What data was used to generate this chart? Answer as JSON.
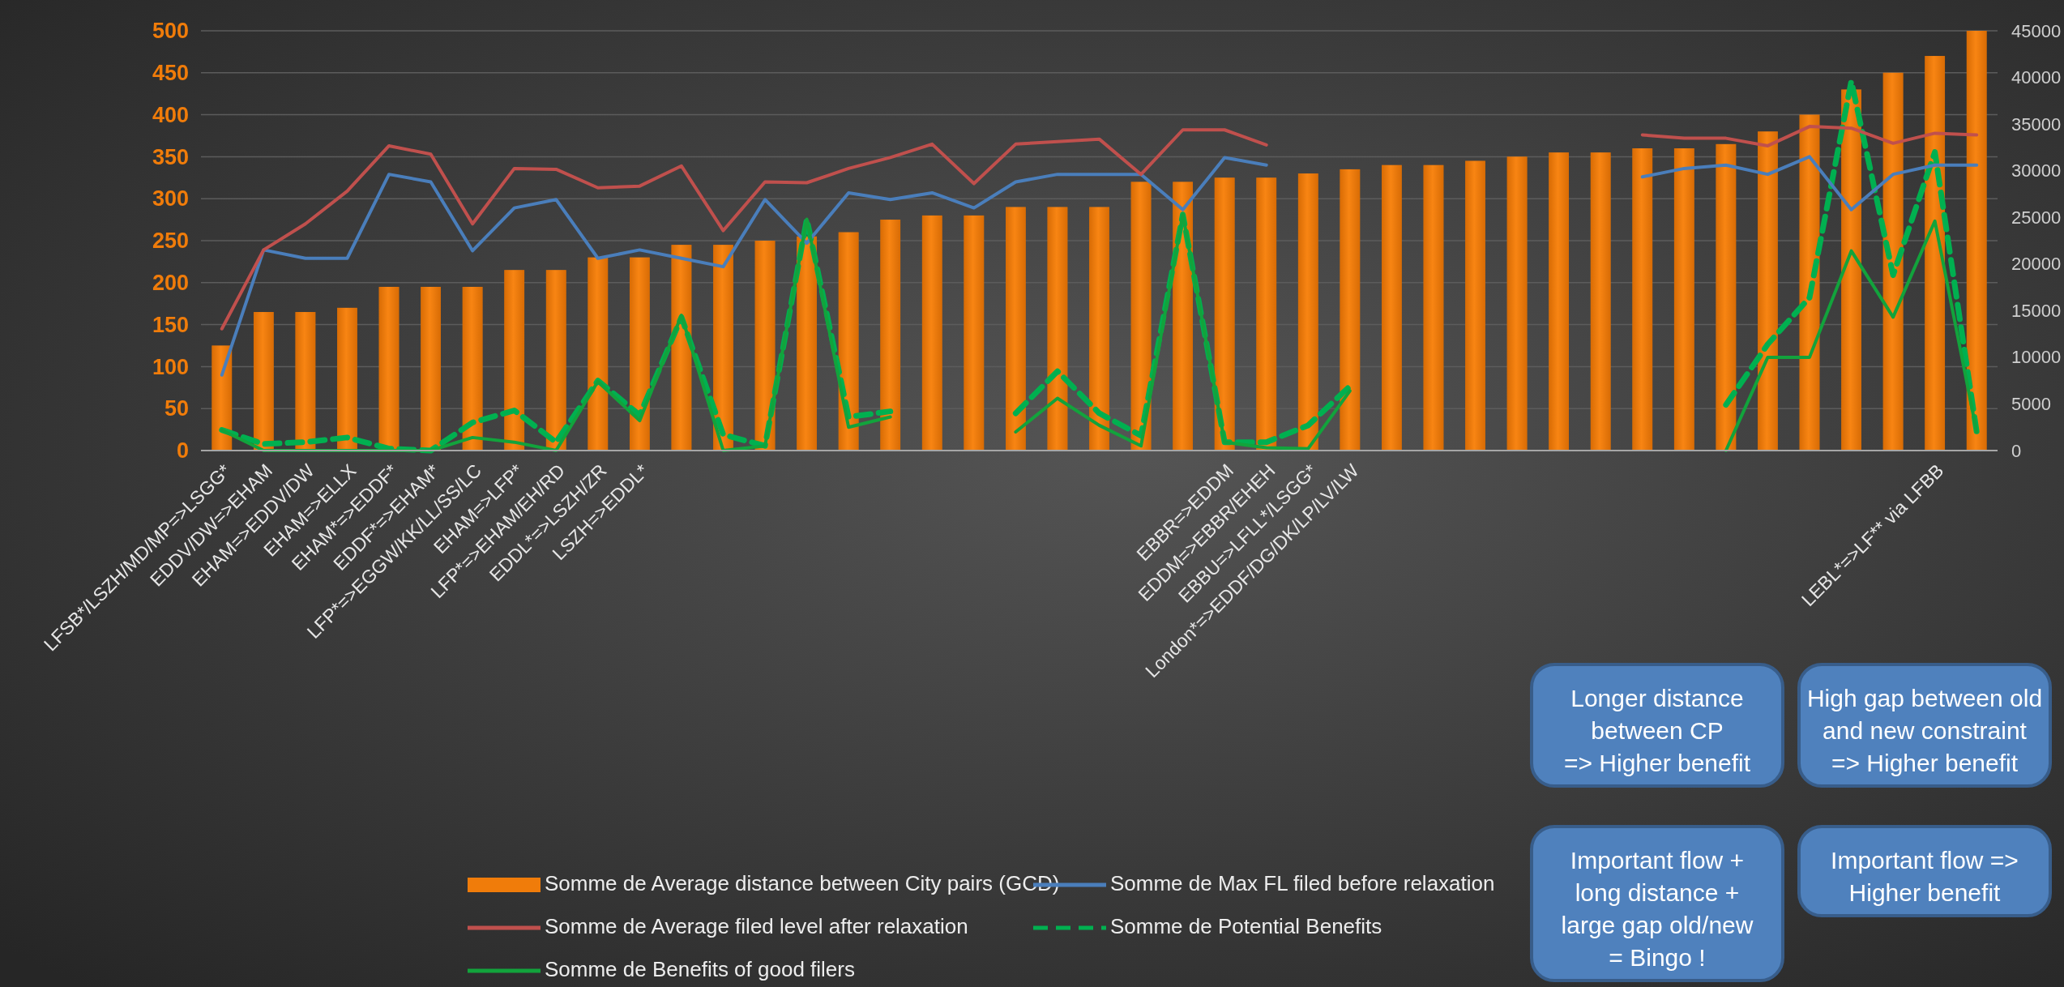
{
  "chart_data": {
    "type": "bar",
    "categories": [
      "LFSB*/LSZH/MD/MP=>LSGG*",
      "EDDV/DW=>EHAM",
      "EHAM=>EDDV/DW",
      "EHAM=>ELLX",
      "EHAM*=>EDDF*",
      "EDDF*=>EHAM*",
      "LFP*=>EGGW/KK/LL/SS/LC",
      "EHAM=>LFP*",
      "LFP*=>EHAM/EH/RD",
      "EDDL*=>LSZH/ZR",
      "LSZH=>EDDL*",
      null,
      null,
      null,
      null,
      null,
      null,
      null,
      null,
      null,
      null,
      null,
      null,
      null,
      "EBBR=>EDDM",
      "EDDM=>EBBR/EHEH",
      "EBBU=>LFLL*/LSGG*",
      "London*=>EDDF/DG/DK/LP/LV/LW",
      null,
      null,
      null,
      null,
      null,
      null,
      null,
      null,
      null,
      null,
      null,
      null,
      null,
      "LEBL*=>LF** via LFBB",
      null
    ],
    "series": [
      {
        "name": "Somme de Average distance between City pairs (GCD)",
        "color": "#f07c0a",
        "values": [
          125,
          165,
          165,
          170,
          195,
          195,
          195,
          215,
          215,
          230,
          230,
          245,
          245,
          250,
          255,
          260,
          275,
          280,
          280,
          290,
          290,
          290,
          320,
          320,
          325,
          325,
          330,
          335,
          340,
          340,
          345,
          350,
          355,
          355,
          360,
          360,
          365,
          380,
          400,
          430,
          450,
          470,
          500
        ]
      },
      {
        "name": "Somme de Max FL filed before relaxation",
        "type": "line",
        "color": "#4a7ebb",
        "values": [
          90,
          239,
          229,
          229,
          329,
          320,
          238,
          289,
          299,
          229,
          239,
          229,
          219,
          299,
          247,
          307,
          299,
          307,
          289,
          320,
          329,
          329,
          329,
          287,
          349,
          340,
          null,
          null,
          null,
          null,
          null,
          null,
          null,
          null,
          326,
          336,
          340,
          329,
          350,
          287,
          329,
          340,
          340
        ]
      },
      {
        "name": "Somme de Average filed level after relaxation",
        "type": "line",
        "color": "#c0504d",
        "values": [
          145,
          239,
          270,
          309,
          363,
          353,
          270,
          336,
          335,
          313,
          315,
          339,
          262,
          320,
          319,
          336,
          349,
          365,
          318,
          365,
          368,
          371,
          329,
          382,
          382,
          364,
          null,
          null,
          null,
          null,
          null,
          null,
          null,
          null,
          376,
          372,
          372,
          363,
          386,
          384,
          366,
          378,
          376
        ]
      },
      {
        "name": "Somme de Potential Benefits",
        "type": "line",
        "axis": "y2",
        "line_style": "dashed",
        "color": "#00b050",
        "values": [
          2200,
          700,
          900,
          1400,
          200,
          0,
          3000,
          4300,
          900,
          7500,
          3800,
          14300,
          1700,
          500,
          24800,
          3600,
          4200,
          null,
          null,
          4000,
          8500,
          4000,
          1600,
          25300,
          900,
          900,
          2700,
          6900,
          null,
          null,
          null,
          null,
          null,
          null,
          null,
          null,
          4900,
          11400,
          16400,
          39600,
          18800,
          32000,
          2000
        ]
      },
      {
        "name": "Somme de Benefits of good filers",
        "type": "line",
        "axis": "y2",
        "line_style": "solid",
        "color": "#12a33c",
        "values": [
          2200,
          0,
          0,
          0,
          0,
          0,
          1400,
          900,
          0,
          7400,
          3200,
          14500,
          0,
          500,
          24800,
          2500,
          3600,
          null,
          null,
          2000,
          5600,
          2700,
          500,
          25300,
          900,
          300,
          200,
          6400,
          null,
          null,
          null,
          null,
          null,
          null,
          null,
          null,
          0,
          10000,
          10000,
          21400,
          14300,
          24600,
          2000
        ]
      }
    ],
    "ylim": [
      0,
      500
    ],
    "yticks": [
      0,
      50,
      100,
      150,
      200,
      250,
      300,
      350,
      400,
      450,
      500
    ],
    "y2lim": [
      0,
      45000
    ],
    "y2ticks": [
      0,
      5000,
      10000,
      15000,
      20000,
      25000,
      30000,
      35000,
      40000,
      45000
    ],
    "grid": "y",
    "legend": "bottom",
    "annotations": [
      "Longer distance\nbetween CP\n=> Higher benefit",
      "High gap between old\nand new constraint\n=> Higher benefit",
      "Important flow +\nlong distance +\nlarge gap old/new\n= Bingo !",
      "Important flow =>\nHigher benefit"
    ]
  }
}
